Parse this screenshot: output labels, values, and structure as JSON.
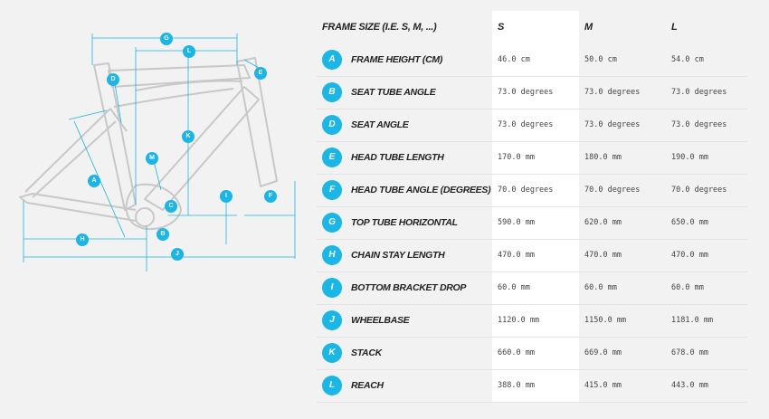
{
  "table": {
    "header_label": "FRAME SIZE (I.E. S, M, ...)",
    "sizes": [
      "S",
      "M",
      "L"
    ],
    "rows": [
      {
        "letter": "A",
        "label": "FRAME HEIGHT (CM)",
        "values": [
          "46.0 cm",
          "50.0 cm",
          "54.0 cm"
        ]
      },
      {
        "letter": "B",
        "label": "SEAT TUBE ANGLE",
        "values": [
          "73.0 degrees",
          "73.0 degrees",
          "73.0 degrees"
        ]
      },
      {
        "letter": "D",
        "label": "SEAT ANGLE",
        "values": [
          "73.0 degrees",
          "73.0 degrees",
          "73.0 degrees"
        ]
      },
      {
        "letter": "E",
        "label": "HEAD TUBE LENGTH",
        "values": [
          "170.0 mm",
          "180.0 mm",
          "190.0 mm"
        ]
      },
      {
        "letter": "F",
        "label": "HEAD TUBE ANGLE (DEGREES)",
        "values": [
          "70.0 degrees",
          "70.0 degrees",
          "70.0 degrees"
        ]
      },
      {
        "letter": "G",
        "label": "TOP TUBE HORIZONTAL",
        "values": [
          "590.0 mm",
          "620.0 mm",
          "650.0 mm"
        ]
      },
      {
        "letter": "H",
        "label": "CHAIN STAY LENGTH",
        "values": [
          "470.0 mm",
          "470.0 mm",
          "470.0 mm"
        ]
      },
      {
        "letter": "I",
        "label": "BOTTOM BRACKET DROP",
        "values": [
          "60.0 mm",
          "60.0 mm",
          "60.0 mm"
        ]
      },
      {
        "letter": "J",
        "label": "WHEELBASE",
        "values": [
          "1120.0 mm",
          "1150.0 mm",
          "1181.0 mm"
        ]
      },
      {
        "letter": "K",
        "label": "STACK",
        "values": [
          "660.0 mm",
          "669.0 mm",
          "678.0 mm"
        ]
      },
      {
        "letter": "L",
        "label": "REACH",
        "values": [
          "388.0 mm",
          "415.0 mm",
          "443.0 mm"
        ]
      }
    ]
  },
  "diagram": {
    "markers": [
      "G",
      "L",
      "D",
      "E",
      "K",
      "M",
      "A",
      "I",
      "F",
      "C",
      "H",
      "B",
      "J"
    ],
    "accent_color": "#1ab6e6",
    "frame_color": "#c8c8c8"
  }
}
